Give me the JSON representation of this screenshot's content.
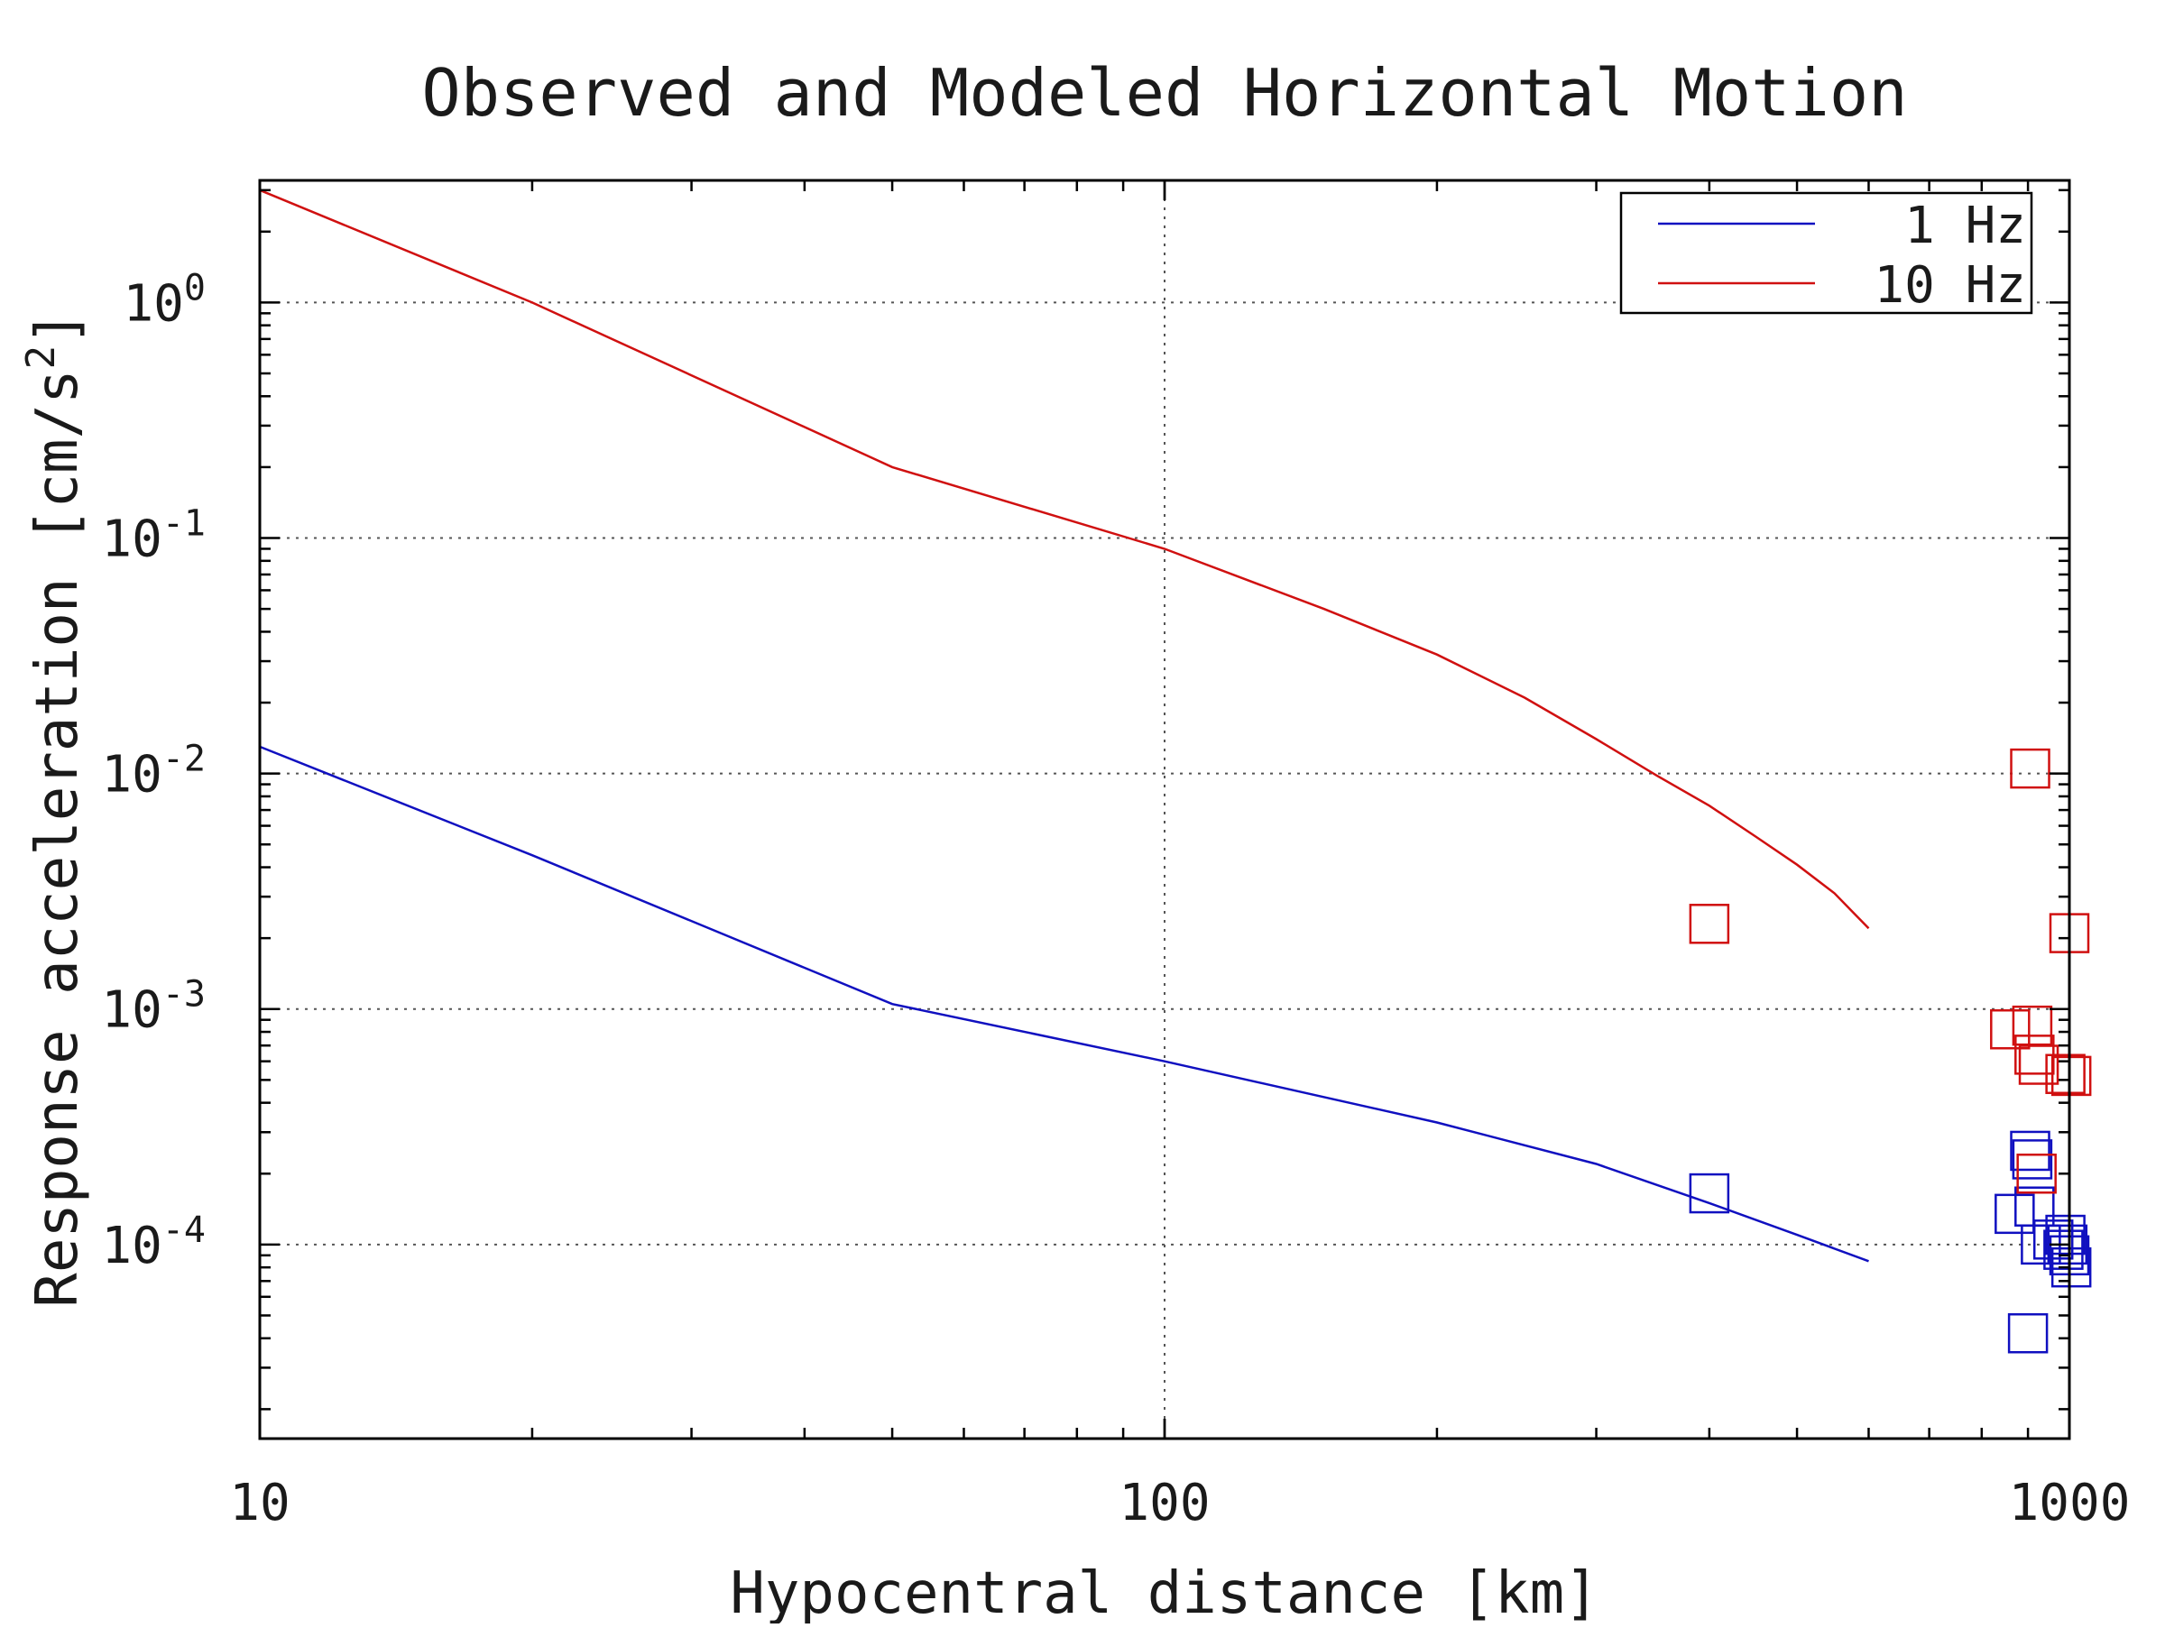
{
  "chart_data": {
    "type": "line",
    "title": "Observed and Modeled Horizontal Motion",
    "xlabel": "Hypocentral distance [km]",
    "ylabel": "Response acceleration [cm/s^2]",
    "ylabel_parts": {
      "base": "Response acceleration [cm/s",
      "sup": "2",
      "end": "]"
    },
    "x_scale": "log",
    "y_scale": "log",
    "xlim": [
      10,
      1000
    ],
    "ylim": [
      1.5e-05,
      3.3
    ],
    "x_ticks": [
      10,
      100,
      1000
    ],
    "x_tick_labels": [
      "10",
      "100",
      "1000"
    ],
    "y_ticks": [
      {
        "value": 1,
        "base": "10",
        "exp": "0"
      },
      {
        "value": 0.1,
        "base": "10",
        "exp": "-1"
      },
      {
        "value": 0.01,
        "base": "10",
        "exp": "-2"
      },
      {
        "value": 0.001,
        "base": "10",
        "exp": "-3"
      },
      {
        "value": 0.0001,
        "base": "10",
        "exp": "-4"
      }
    ],
    "grid": true,
    "legend_position": "top-right",
    "series": [
      {
        "name": "1 Hz",
        "color": "#1010c0",
        "x": [
          10,
          20,
          50,
          100,
          200,
          300,
          400,
          500,
          600
        ],
        "y": [
          0.013,
          0.0045,
          0.00105,
          0.0006,
          0.00033,
          0.00022,
          0.00015,
          0.00011,
          8.5e-05
        ]
      },
      {
        "name": "10 Hz",
        "color": "#d01010",
        "x": [
          10,
          20,
          50,
          100,
          150,
          200,
          250,
          300,
          350,
          400,
          450,
          500,
          550,
          600
        ],
        "y": [
          3.0,
          1.0,
          0.2,
          0.09,
          0.05,
          0.032,
          0.021,
          0.014,
          0.0098,
          0.0073,
          0.0054,
          0.0041,
          0.0031,
          0.0022
        ]
      }
    ],
    "observed": [
      {
        "series": "1 Hz",
        "color": "#1010c0",
        "x": [
          400,
          870,
          900,
          905,
          910,
          915,
          930,
          960,
          985,
          990,
          995,
          1000,
          1005
        ],
        "y": [
          0.000165,
          0.000135,
          4.2e-05,
          0.00025,
          0.00023,
          0.000145,
          0.0001,
          0.000105,
          9.5e-05,
          0.00011,
          0.0001,
          9e-05,
          8e-05
        ]
      },
      {
        "series": "10 Hz",
        "color": "#d01010",
        "x": [
          400,
          860,
          905,
          910,
          915,
          920,
          925,
          990,
          1000,
          1005
        ],
        "y": [
          0.0023,
          0.00082,
          0.0105,
          0.00085,
          0.00064,
          0.0002,
          0.00058,
          0.00053,
          0.0021,
          0.00052
        ]
      }
    ]
  }
}
